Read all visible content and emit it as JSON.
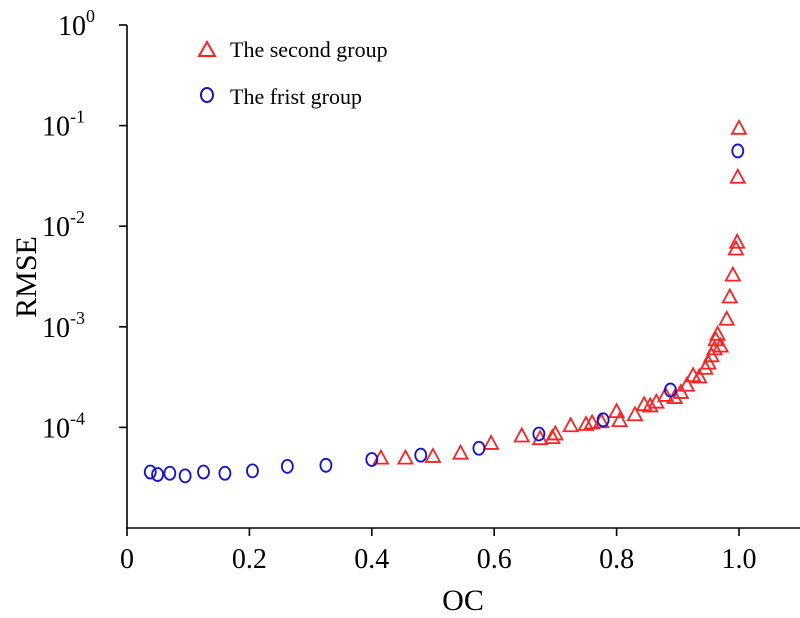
{
  "chart_data": {
    "type": "scatter",
    "xlabel": "OC",
    "ylabel": "RMSE",
    "xlim": [
      0,
      1.1
    ],
    "ylog": true,
    "ylim_log10": [
      -5,
      0
    ],
    "x_ticks": [
      {
        "value": 0,
        "label": "0"
      },
      {
        "value": 0.2,
        "label": "0.2"
      },
      {
        "value": 0.4,
        "label": "0.4"
      },
      {
        "value": 0.6,
        "label": "0.6"
      },
      {
        "value": 0.8,
        "label": "0.8"
      },
      {
        "value": 1.0,
        "label": "1.0"
      }
    ],
    "y_ticks": [
      {
        "exp": 0,
        "base": "10",
        "power": "0"
      },
      {
        "exp": -1,
        "base": "10",
        "power": "-1"
      },
      {
        "exp": -2,
        "base": "10",
        "power": "-2"
      },
      {
        "exp": -3,
        "base": "10",
        "power": "-3"
      },
      {
        "exp": -4,
        "base": "10",
        "power": "-4"
      }
    ],
    "legend_position": "top-left",
    "series": [
      {
        "name": "The second group",
        "marker": "triangle",
        "color": "#ff2020",
        "points": [
          [
            0.415,
            5e-05
          ],
          [
            0.455,
            5e-05
          ],
          [
            0.5,
            5.2e-05
          ],
          [
            0.545,
            5.6e-05
          ],
          [
            0.595,
            7e-05
          ],
          [
            0.645,
            8.3e-05
          ],
          [
            0.675,
            7.8e-05
          ],
          [
            0.695,
            8e-05
          ],
          [
            0.7,
            8.7e-05
          ],
          [
            0.725,
            0.000105
          ],
          [
            0.75,
            0.000108
          ],
          [
            0.76,
            0.000112
          ],
          [
            0.775,
            0.000115
          ],
          [
            0.8,
            0.000145
          ],
          [
            0.805,
            0.000118
          ],
          [
            0.83,
            0.000135
          ],
          [
            0.845,
            0.00017
          ],
          [
            0.855,
            0.000165
          ],
          [
            0.865,
            0.00018
          ],
          [
            0.88,
            0.00021
          ],
          [
            0.895,
            0.0002
          ],
          [
            0.905,
            0.000225
          ],
          [
            0.915,
            0.000265
          ],
          [
            0.925,
            0.00033
          ],
          [
            0.935,
            0.00032
          ],
          [
            0.945,
            0.00039
          ],
          [
            0.95,
            0.00044
          ],
          [
            0.955,
            0.00052
          ],
          [
            0.96,
            0.00061
          ],
          [
            0.962,
            0.00075
          ],
          [
            0.965,
            0.00085
          ],
          [
            0.97,
            0.00065
          ],
          [
            0.98,
            0.0012
          ],
          [
            0.985,
            0.002
          ],
          [
            0.99,
            0.0033
          ],
          [
            0.995,
            0.006
          ],
          [
            0.997,
            0.007
          ],
          [
            0.998,
            0.031
          ],
          [
            1.0,
            0.095
          ]
        ]
      },
      {
        "name": "The frist group",
        "marker": "circle",
        "color": "#1010e0",
        "points": [
          [
            0.038,
            3.6e-05
          ],
          [
            0.05,
            3.4e-05
          ],
          [
            0.07,
            3.5e-05
          ],
          [
            0.095,
            3.3e-05
          ],
          [
            0.125,
            3.6e-05
          ],
          [
            0.16,
            3.5e-05
          ],
          [
            0.205,
            3.7e-05
          ],
          [
            0.262,
            4.1e-05
          ],
          [
            0.325,
            4.2e-05
          ],
          [
            0.4,
            4.8e-05
          ],
          [
            0.48,
            5.3e-05
          ],
          [
            0.575,
            6.2e-05
          ],
          [
            0.673,
            8.6e-05
          ],
          [
            0.778,
            0.000119
          ],
          [
            0.888,
            0.000235
          ],
          [
            0.998,
            0.056
          ]
        ]
      }
    ]
  }
}
